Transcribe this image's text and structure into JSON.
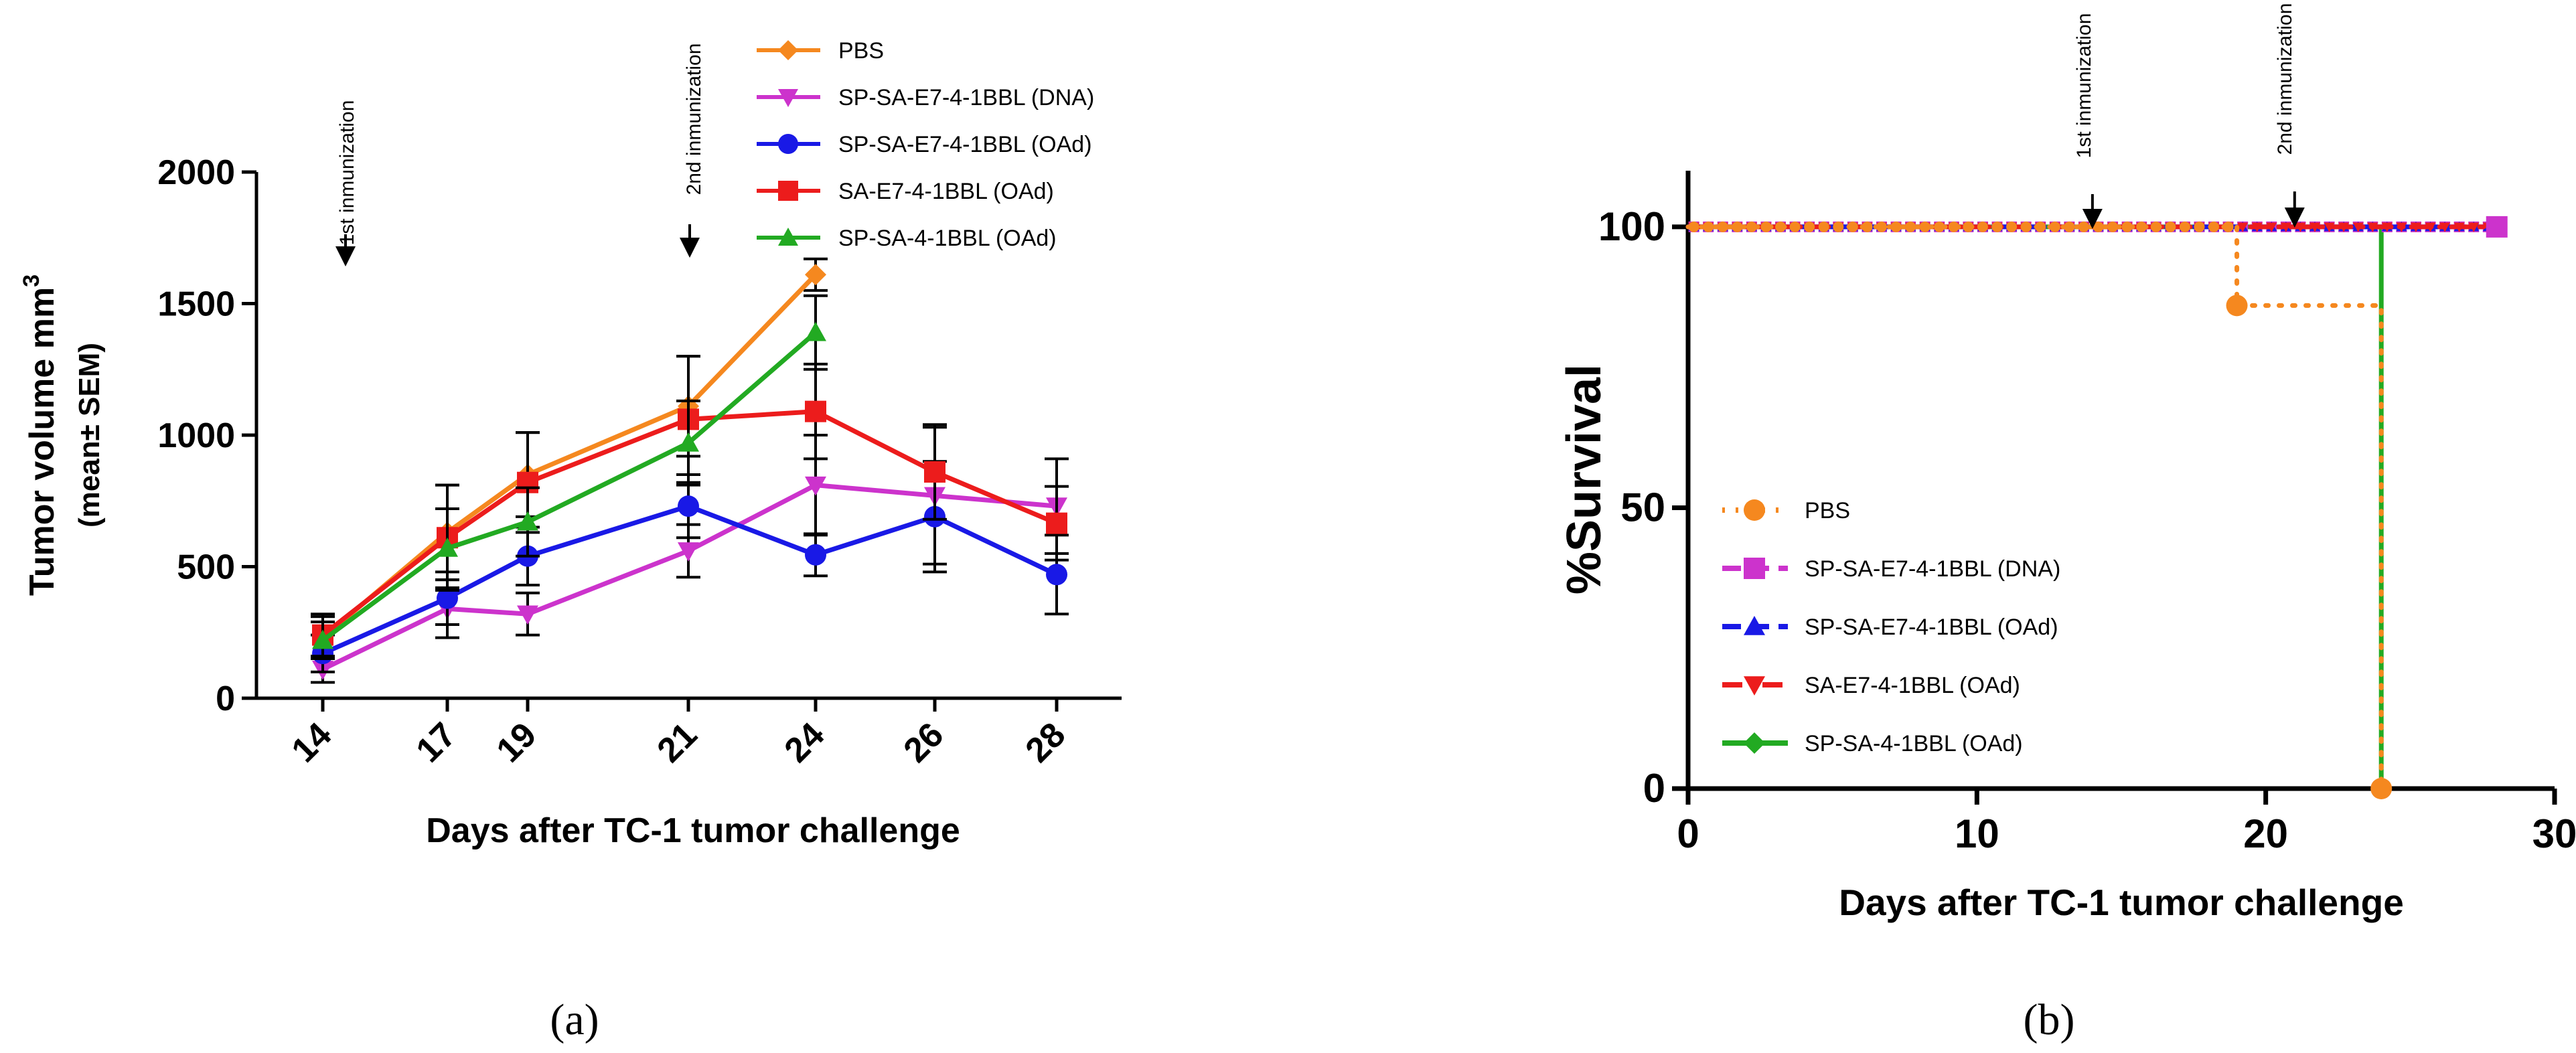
{
  "chart_data": [
    {
      "type": "line",
      "panel_label": "(a)",
      "xlabel": "Days after TC-1 tumor challenge",
      "ylabel": "Tumor volume mm",
      "ylabel_sup": "3",
      "ylabel2": "(mean± SEM)",
      "categories": [
        "14",
        "17",
        "19",
        "21",
        "24",
        "26",
        "28"
      ],
      "ylim": [
        0,
        2000
      ],
      "yticks": [
        0,
        500,
        1000,
        1500,
        2000
      ],
      "grid": false,
      "legend_position": "top-right",
      "series": [
        {
          "name": "PBS",
          "color": "#f5881f",
          "marker": "diamond",
          "values": [
            230,
            630,
            850,
            1110,
            1610,
            null,
            null
          ],
          "errors": [
            80,
            180,
            160,
            190,
            60,
            null,
            null
          ]
        },
        {
          "name": "SP-SA-E7-4-1BBL (DNA)",
          "color": "#cc33cc",
          "marker": "triangle-down",
          "values": [
            110,
            340,
            320,
            560,
            810,
            770,
            730
          ],
          "errors": [
            50,
            110,
            80,
            100,
            190,
            260,
            180
          ]
        },
        {
          "name": "SP-SA-E7-4-1BBL (OAd)",
          "color": "#1919e6",
          "marker": "circle",
          "values": [
            170,
            380,
            540,
            730,
            545,
            690,
            470
          ],
          "errors": [
            70,
            100,
            110,
            120,
            80,
            210,
            150
          ]
        },
        {
          "name": "SA-E7-4-1BBL (OAd)",
          "color": "#ec1c1c",
          "marker": "square",
          "values": [
            240,
            610,
            820,
            1060,
            1090,
            860,
            665
          ],
          "errors": [
            80,
            200,
            190,
            240,
            180,
            180,
            140
          ]
        },
        {
          "name": "SP-SA-4-1BBL (OAd)",
          "color": "#22aa22",
          "marker": "triangle-up",
          "values": [
            220,
            570,
            670,
            970,
            1390,
            null,
            null
          ],
          "errors": [
            70,
            150,
            130,
            160,
            140,
            null,
            null
          ]
        }
      ],
      "annotations": [
        {
          "text": "1st inmunization",
          "x": "14"
        },
        {
          "text": "2nd  inmunization",
          "x": "21"
        }
      ]
    },
    {
      "type": "line",
      "panel_label": "(b)",
      "xlabel": "Days after TC-1 tumor challenge",
      "ylabel": "%Survival",
      "xlim": [
        0,
        30
      ],
      "xticks": [
        0,
        10,
        20,
        30
      ],
      "ylim": [
        0,
        110
      ],
      "yticks": [
        0,
        50,
        100
      ],
      "grid": false,
      "legend_position": "bottom-left",
      "series": [
        {
          "name": "PBS",
          "color": "#f5881f",
          "marker": "circle",
          "line": "dotted",
          "x": [
            0,
            19,
            19,
            24,
            24
          ],
          "y": [
            100,
            100,
            86,
            86,
            0
          ]
        },
        {
          "name": "SP-SA-E7-4-1BBL (DNA)",
          "color": "#cc33cc",
          "marker": "square",
          "line": "dashed",
          "x": [
            0,
            28
          ],
          "y": [
            100,
            100
          ]
        },
        {
          "name": "SP-SA-E7-4-1BBL (OAd)",
          "color": "#1919e6",
          "marker": "triangle-up",
          "line": "dashed",
          "x": [
            0,
            28
          ],
          "y": [
            100,
            100
          ]
        },
        {
          "name": "SA-E7-4-1BBL (OAd)",
          "color": "#ec1c1c",
          "marker": "triangle-down",
          "line": "dash-dot",
          "x": [
            0,
            28
          ],
          "y": [
            100,
            100
          ]
        },
        {
          "name": "SP-SA-4-1BBL (OAd)",
          "color": "#22aa22",
          "marker": "diamond",
          "line": "solid",
          "x": [
            0,
            24,
            24
          ],
          "y": [
            100,
            100,
            0
          ]
        }
      ],
      "annotations": [
        {
          "text": "1st inmunization",
          "x": 14
        },
        {
          "text": "2nd  inmunization",
          "x": 21
        }
      ]
    }
  ]
}
